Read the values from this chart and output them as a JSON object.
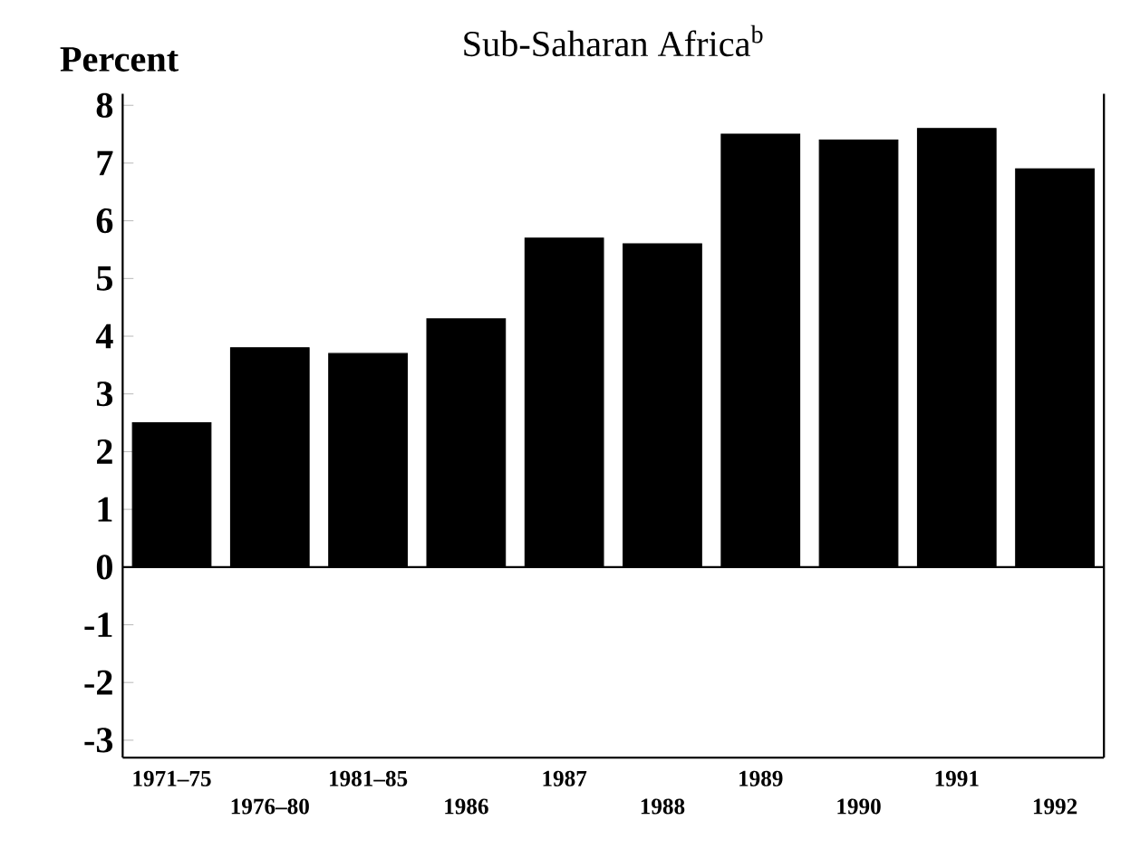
{
  "chart_data": {
    "type": "bar",
    "title": "Sub-Saharan Africa$^{b}$",
    "ylabel": "Percent",
    "categories": [
      "1971–75",
      "1976–80",
      "1981–85",
      "1986",
      "1987",
      "1988",
      "1989",
      "1990",
      "1991",
      "1992"
    ],
    "values": [
      2.5,
      3.8,
      3.7,
      4.3,
      5.7,
      5.6,
      7.5,
      7.4,
      7.6,
      6.9
    ],
    "color": "#000000",
    "ylim": [
      -3.3,
      8.2
    ],
    "yticks": [
      -3,
      -2,
      -1,
      0,
      1,
      2,
      3,
      4,
      5,
      6,
      7,
      8
    ],
    "ref_lines": [
      {
        "axis": "y",
        "value": 0
      }
    ],
    "grid": false
  }
}
